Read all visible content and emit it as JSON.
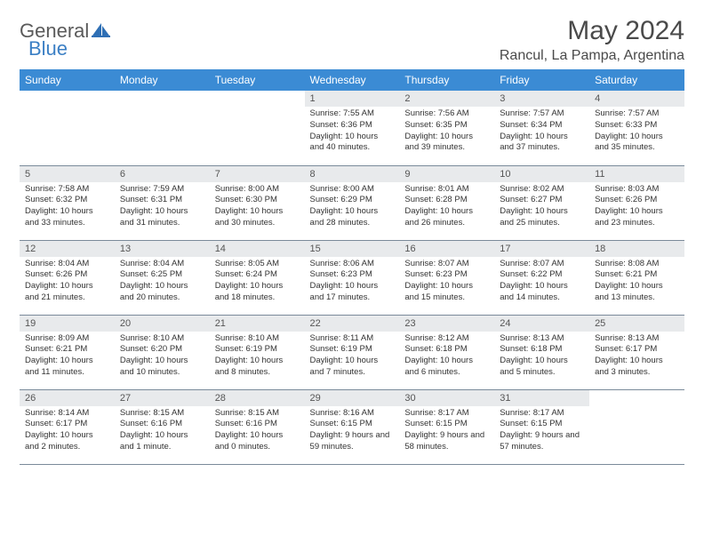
{
  "brand": {
    "part1": "General",
    "part2": "Blue"
  },
  "title": "May 2024",
  "location": "Rancul, La Pampa, Argentina",
  "colors": {
    "header_bg": "#3b8bd4",
    "header_text": "#ffffff",
    "daynum_bg": "#e8eaec",
    "border": "#7a8a9a",
    "brand_gray": "#5a5a5a",
    "brand_blue": "#3b7fc4"
  },
  "weekdays": [
    "Sunday",
    "Monday",
    "Tuesday",
    "Wednesday",
    "Thursday",
    "Friday",
    "Saturday"
  ],
  "weeks": [
    [
      {
        "n": "",
        "lines": []
      },
      {
        "n": "",
        "lines": []
      },
      {
        "n": "",
        "lines": []
      },
      {
        "n": "1",
        "lines": [
          "Sunrise: 7:55 AM",
          "Sunset: 6:36 PM",
          "Daylight: 10 hours and 40 minutes."
        ]
      },
      {
        "n": "2",
        "lines": [
          "Sunrise: 7:56 AM",
          "Sunset: 6:35 PM",
          "Daylight: 10 hours and 39 minutes."
        ]
      },
      {
        "n": "3",
        "lines": [
          "Sunrise: 7:57 AM",
          "Sunset: 6:34 PM",
          "Daylight: 10 hours and 37 minutes."
        ]
      },
      {
        "n": "4",
        "lines": [
          "Sunrise: 7:57 AM",
          "Sunset: 6:33 PM",
          "Daylight: 10 hours and 35 minutes."
        ]
      }
    ],
    [
      {
        "n": "5",
        "lines": [
          "Sunrise: 7:58 AM",
          "Sunset: 6:32 PM",
          "Daylight: 10 hours and 33 minutes."
        ]
      },
      {
        "n": "6",
        "lines": [
          "Sunrise: 7:59 AM",
          "Sunset: 6:31 PM",
          "Daylight: 10 hours and 31 minutes."
        ]
      },
      {
        "n": "7",
        "lines": [
          "Sunrise: 8:00 AM",
          "Sunset: 6:30 PM",
          "Daylight: 10 hours and 30 minutes."
        ]
      },
      {
        "n": "8",
        "lines": [
          "Sunrise: 8:00 AM",
          "Sunset: 6:29 PM",
          "Daylight: 10 hours and 28 minutes."
        ]
      },
      {
        "n": "9",
        "lines": [
          "Sunrise: 8:01 AM",
          "Sunset: 6:28 PM",
          "Daylight: 10 hours and 26 minutes."
        ]
      },
      {
        "n": "10",
        "lines": [
          "Sunrise: 8:02 AM",
          "Sunset: 6:27 PM",
          "Daylight: 10 hours and 25 minutes."
        ]
      },
      {
        "n": "11",
        "lines": [
          "Sunrise: 8:03 AM",
          "Sunset: 6:26 PM",
          "Daylight: 10 hours and 23 minutes."
        ]
      }
    ],
    [
      {
        "n": "12",
        "lines": [
          "Sunrise: 8:04 AM",
          "Sunset: 6:26 PM",
          "Daylight: 10 hours and 21 minutes."
        ]
      },
      {
        "n": "13",
        "lines": [
          "Sunrise: 8:04 AM",
          "Sunset: 6:25 PM",
          "Daylight: 10 hours and 20 minutes."
        ]
      },
      {
        "n": "14",
        "lines": [
          "Sunrise: 8:05 AM",
          "Sunset: 6:24 PM",
          "Daylight: 10 hours and 18 minutes."
        ]
      },
      {
        "n": "15",
        "lines": [
          "Sunrise: 8:06 AM",
          "Sunset: 6:23 PM",
          "Daylight: 10 hours and 17 minutes."
        ]
      },
      {
        "n": "16",
        "lines": [
          "Sunrise: 8:07 AM",
          "Sunset: 6:23 PM",
          "Daylight: 10 hours and 15 minutes."
        ]
      },
      {
        "n": "17",
        "lines": [
          "Sunrise: 8:07 AM",
          "Sunset: 6:22 PM",
          "Daylight: 10 hours and 14 minutes."
        ]
      },
      {
        "n": "18",
        "lines": [
          "Sunrise: 8:08 AM",
          "Sunset: 6:21 PM",
          "Daylight: 10 hours and 13 minutes."
        ]
      }
    ],
    [
      {
        "n": "19",
        "lines": [
          "Sunrise: 8:09 AM",
          "Sunset: 6:21 PM",
          "Daylight: 10 hours and 11 minutes."
        ]
      },
      {
        "n": "20",
        "lines": [
          "Sunrise: 8:10 AM",
          "Sunset: 6:20 PM",
          "Daylight: 10 hours and 10 minutes."
        ]
      },
      {
        "n": "21",
        "lines": [
          "Sunrise: 8:10 AM",
          "Sunset: 6:19 PM",
          "Daylight: 10 hours and 8 minutes."
        ]
      },
      {
        "n": "22",
        "lines": [
          "Sunrise: 8:11 AM",
          "Sunset: 6:19 PM",
          "Daylight: 10 hours and 7 minutes."
        ]
      },
      {
        "n": "23",
        "lines": [
          "Sunrise: 8:12 AM",
          "Sunset: 6:18 PM",
          "Daylight: 10 hours and 6 minutes."
        ]
      },
      {
        "n": "24",
        "lines": [
          "Sunrise: 8:13 AM",
          "Sunset: 6:18 PM",
          "Daylight: 10 hours and 5 minutes."
        ]
      },
      {
        "n": "25",
        "lines": [
          "Sunrise: 8:13 AM",
          "Sunset: 6:17 PM",
          "Daylight: 10 hours and 3 minutes."
        ]
      }
    ],
    [
      {
        "n": "26",
        "lines": [
          "Sunrise: 8:14 AM",
          "Sunset: 6:17 PM",
          "Daylight: 10 hours and 2 minutes."
        ]
      },
      {
        "n": "27",
        "lines": [
          "Sunrise: 8:15 AM",
          "Sunset: 6:16 PM",
          "Daylight: 10 hours and 1 minute."
        ]
      },
      {
        "n": "28",
        "lines": [
          "Sunrise: 8:15 AM",
          "Sunset: 6:16 PM",
          "Daylight: 10 hours and 0 minutes."
        ]
      },
      {
        "n": "29",
        "lines": [
          "Sunrise: 8:16 AM",
          "Sunset: 6:15 PM",
          "Daylight: 9 hours and 59 minutes."
        ]
      },
      {
        "n": "30",
        "lines": [
          "Sunrise: 8:17 AM",
          "Sunset: 6:15 PM",
          "Daylight: 9 hours and 58 minutes."
        ]
      },
      {
        "n": "31",
        "lines": [
          "Sunrise: 8:17 AM",
          "Sunset: 6:15 PM",
          "Daylight: 9 hours and 57 minutes."
        ]
      },
      {
        "n": "",
        "lines": []
      }
    ]
  ]
}
